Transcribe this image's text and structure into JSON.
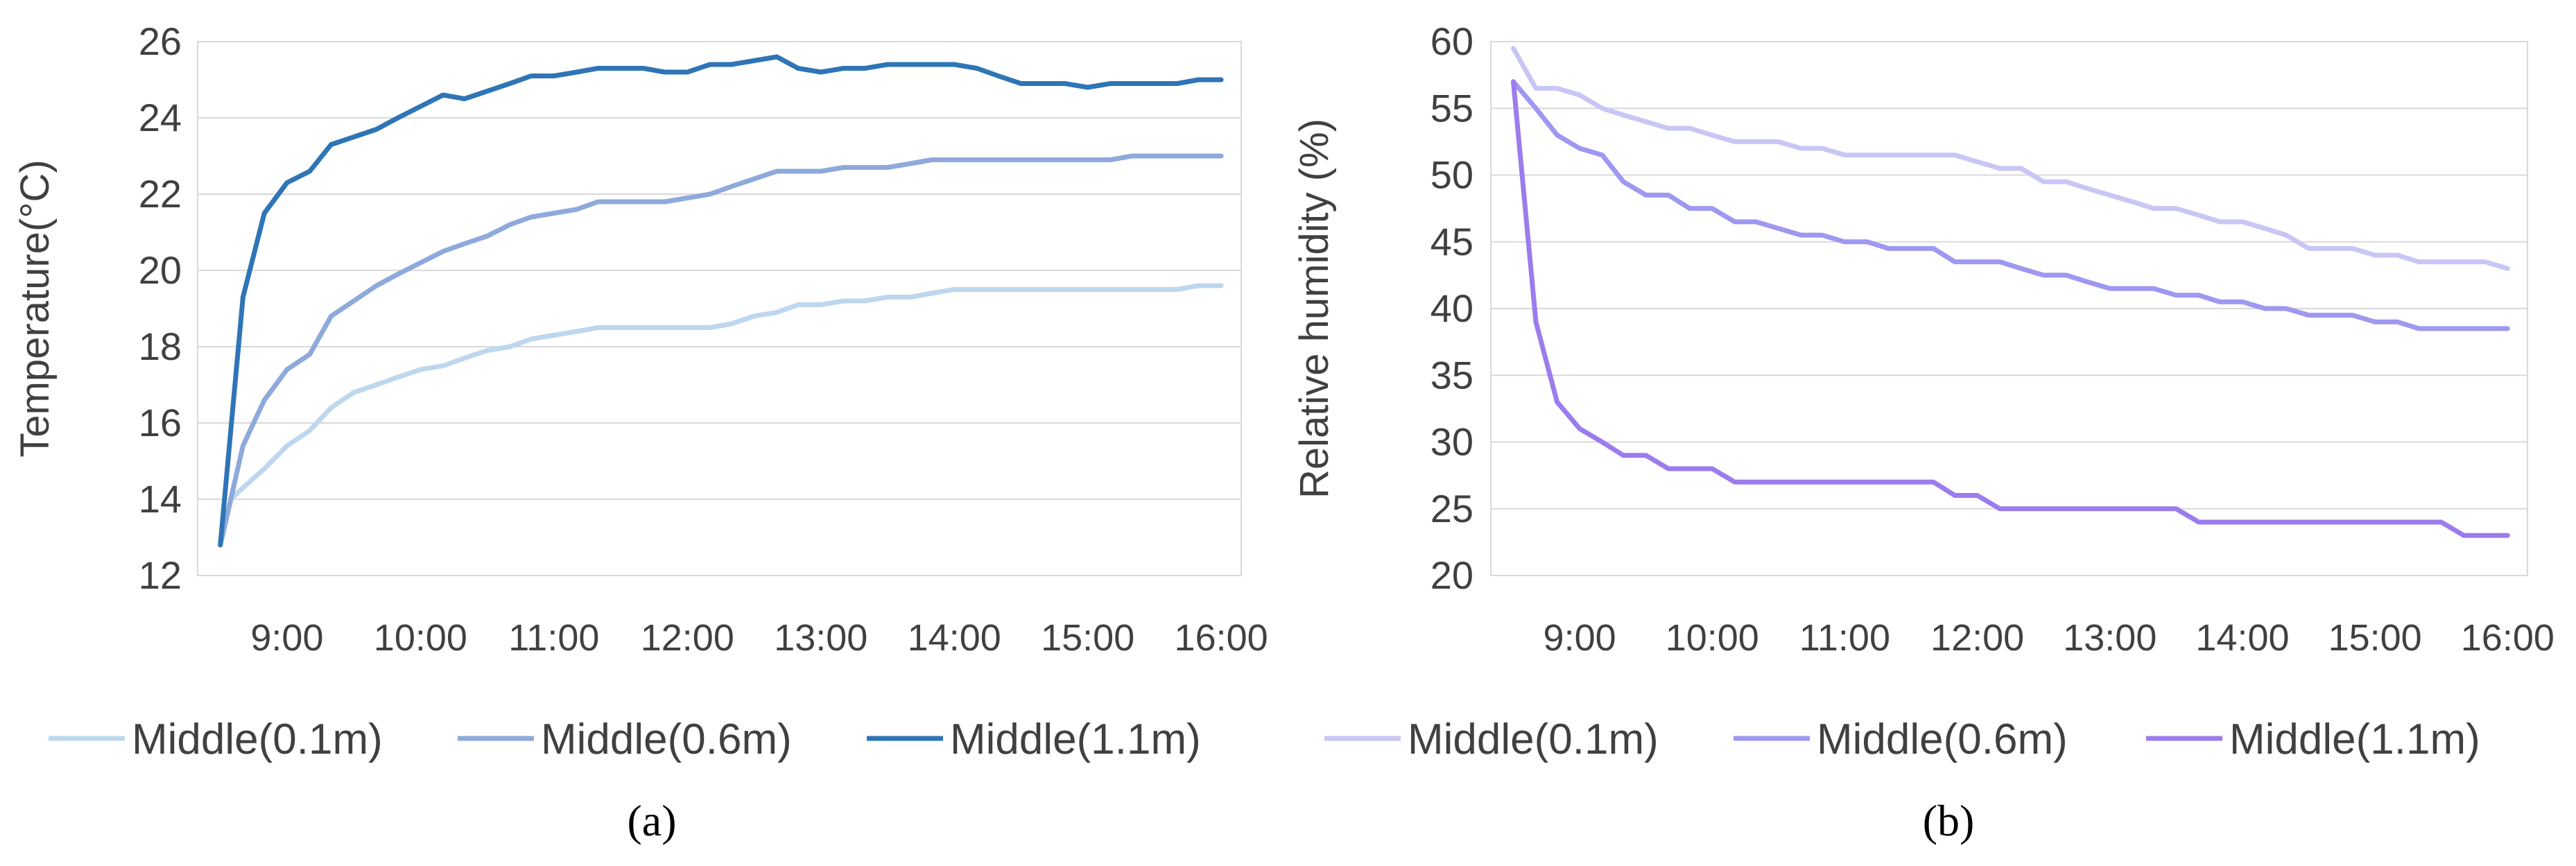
{
  "chart_data": [
    {
      "type": "line",
      "caption": "(a)",
      "ylabel": "Temperature(°C)",
      "ylim": [
        12,
        26
      ],
      "yticks": [
        12,
        14,
        16,
        18,
        20,
        22,
        24,
        26
      ],
      "xlim": [
        8.33,
        16.15
      ],
      "xticks": [
        {
          "v": 9,
          "label": "9:00"
        },
        {
          "v": 10,
          "label": "10:00"
        },
        {
          "v": 11,
          "label": "11:00"
        },
        {
          "v": 12,
          "label": "12:00"
        },
        {
          "v": 13,
          "label": "13:00"
        },
        {
          "v": 14,
          "label": "14:00"
        },
        {
          "v": 15,
          "label": "15:00"
        },
        {
          "v": 16,
          "label": "16:00"
        }
      ],
      "grid": true,
      "legend_position": "bottom",
      "series": [
        {
          "name": "Middle(0.1m)",
          "color": "#bdd7ee",
          "points": [
            [
              8.5,
              12.8
            ],
            [
              8.58,
              14.0
            ],
            [
              8.67,
              14.3
            ],
            [
              8.83,
              14.8
            ],
            [
              9,
              15.4
            ],
            [
              9.17,
              15.8
            ],
            [
              9.33,
              16.4
            ],
            [
              9.5,
              16.8
            ],
            [
              9.67,
              17.0
            ],
            [
              9.83,
              17.2
            ],
            [
              10,
              17.4
            ],
            [
              10.17,
              17.5
            ],
            [
              10.33,
              17.7
            ],
            [
              10.5,
              17.9
            ],
            [
              10.67,
              18.0
            ],
            [
              10.83,
              18.2
            ],
            [
              11,
              18.3
            ],
            [
              11.17,
              18.4
            ],
            [
              11.33,
              18.5
            ],
            [
              11.5,
              18.5
            ],
            [
              11.67,
              18.5
            ],
            [
              11.83,
              18.5
            ],
            [
              12,
              18.5
            ],
            [
              12.17,
              18.5
            ],
            [
              12.33,
              18.6
            ],
            [
              12.5,
              18.8
            ],
            [
              12.67,
              18.9
            ],
            [
              12.83,
              19.1
            ],
            [
              13,
              19.1
            ],
            [
              13.17,
              19.2
            ],
            [
              13.33,
              19.2
            ],
            [
              13.5,
              19.3
            ],
            [
              13.67,
              19.3
            ],
            [
              13.83,
              19.4
            ],
            [
              14,
              19.5
            ],
            [
              14.5,
              19.5
            ],
            [
              15,
              19.5
            ],
            [
              15.5,
              19.5
            ],
            [
              15.67,
              19.5
            ],
            [
              15.83,
              19.6
            ],
            [
              16,
              19.6
            ]
          ]
        },
        {
          "name": "Middle(0.6m)",
          "color": "#8ea9db",
          "points": [
            [
              8.5,
              12.8
            ],
            [
              8.67,
              15.4
            ],
            [
              8.83,
              16.6
            ],
            [
              9,
              17.4
            ],
            [
              9.17,
              17.8
            ],
            [
              9.33,
              18.8
            ],
            [
              9.5,
              19.2
            ],
            [
              9.67,
              19.6
            ],
            [
              9.83,
              19.9
            ],
            [
              10,
              20.2
            ],
            [
              10.17,
              20.5
            ],
            [
              10.33,
              20.7
            ],
            [
              10.5,
              20.9
            ],
            [
              10.67,
              21.2
            ],
            [
              10.83,
              21.4
            ],
            [
              11,
              21.5
            ],
            [
              11.17,
              21.6
            ],
            [
              11.33,
              21.8
            ],
            [
              11.5,
              21.8
            ],
            [
              11.67,
              21.8
            ],
            [
              11.83,
              21.8
            ],
            [
              12,
              21.9
            ],
            [
              12.17,
              22.0
            ],
            [
              12.33,
              22.2
            ],
            [
              12.5,
              22.4
            ],
            [
              12.67,
              22.6
            ],
            [
              12.83,
              22.6
            ],
            [
              13,
              22.6
            ],
            [
              13.17,
              22.7
            ],
            [
              13.33,
              22.7
            ],
            [
              13.5,
              22.7
            ],
            [
              13.67,
              22.8
            ],
            [
              13.83,
              22.9
            ],
            [
              14,
              22.9
            ],
            [
              14.5,
              22.9
            ],
            [
              15,
              22.9
            ],
            [
              15.17,
              22.9
            ],
            [
              15.33,
              23.0
            ],
            [
              16,
              23.0
            ]
          ]
        },
        {
          "name": "Middle(1.1m)",
          "color": "#2e75b6",
          "points": [
            [
              8.5,
              12.8
            ],
            [
              8.67,
              19.3
            ],
            [
              8.83,
              21.5
            ],
            [
              9,
              22.3
            ],
            [
              9.17,
              22.6
            ],
            [
              9.33,
              23.3
            ],
            [
              9.5,
              23.5
            ],
            [
              9.67,
              23.7
            ],
            [
              9.83,
              24.0
            ],
            [
              10,
              24.3
            ],
            [
              10.17,
              24.6
            ],
            [
              10.33,
              24.5
            ],
            [
              10.5,
              24.7
            ],
            [
              10.67,
              24.9
            ],
            [
              10.83,
              25.1
            ],
            [
              11,
              25.1
            ],
            [
              11.17,
              25.2
            ],
            [
              11.33,
              25.3
            ],
            [
              11.5,
              25.3
            ],
            [
              11.67,
              25.3
            ],
            [
              11.83,
              25.2
            ],
            [
              12,
              25.2
            ],
            [
              12.17,
              25.4
            ],
            [
              12.33,
              25.4
            ],
            [
              12.5,
              25.5
            ],
            [
              12.67,
              25.6
            ],
            [
              12.83,
              25.3
            ],
            [
              13,
              25.2
            ],
            [
              13.17,
              25.3
            ],
            [
              13.33,
              25.3
            ],
            [
              13.5,
              25.4
            ],
            [
              13.67,
              25.4
            ],
            [
              13.83,
              25.4
            ],
            [
              14,
              25.4
            ],
            [
              14.17,
              25.3
            ],
            [
              14.33,
              25.1
            ],
            [
              14.5,
              24.9
            ],
            [
              14.67,
              24.9
            ],
            [
              14.83,
              24.9
            ],
            [
              15,
              24.8
            ],
            [
              15.17,
              24.9
            ],
            [
              15.33,
              24.9
            ],
            [
              15.5,
              24.9
            ],
            [
              15.67,
              24.9
            ],
            [
              15.83,
              25.0
            ],
            [
              16,
              25.0
            ]
          ]
        }
      ]
    },
    {
      "type": "line",
      "caption": "(b)",
      "ylabel": "Relative humidity (%)",
      "ylim": [
        20,
        60
      ],
      "yticks": [
        20,
        25,
        30,
        35,
        40,
        45,
        50,
        55,
        60
      ],
      "xlim": [
        8.33,
        16.15
      ],
      "xticks": [
        {
          "v": 9,
          "label": "9:00"
        },
        {
          "v": 10,
          "label": "10:00"
        },
        {
          "v": 11,
          "label": "11:00"
        },
        {
          "v": 12,
          "label": "12:00"
        },
        {
          "v": 13,
          "label": "13:00"
        },
        {
          "v": 14,
          "label": "14:00"
        },
        {
          "v": 15,
          "label": "15:00"
        },
        {
          "v": 16,
          "label": "16:00"
        }
      ],
      "grid": true,
      "legend_position": "bottom",
      "series": [
        {
          "name": "Middle(0.1m)",
          "color": "#c9c6f5",
          "points": [
            [
              8.5,
              59.5
            ],
            [
              8.67,
              56.5
            ],
            [
              8.83,
              56.5
            ],
            [
              9,
              56.0
            ],
            [
              9.17,
              55.0
            ],
            [
              9.33,
              54.5
            ],
            [
              9.5,
              54.0
            ],
            [
              9.67,
              53.5
            ],
            [
              9.83,
              53.5
            ],
            [
              10,
              53.0
            ],
            [
              10.17,
              52.5
            ],
            [
              10.33,
              52.5
            ],
            [
              10.5,
              52.5
            ],
            [
              10.67,
              52.0
            ],
            [
              10.83,
              52.0
            ],
            [
              11,
              51.5
            ],
            [
              11.5,
              51.5
            ],
            [
              11.83,
              51.5
            ],
            [
              12,
              51.0
            ],
            [
              12.17,
              50.5
            ],
            [
              12.33,
              50.5
            ],
            [
              12.5,
              49.5
            ],
            [
              12.67,
              49.5
            ],
            [
              12.83,
              49.0
            ],
            [
              13,
              48.5
            ],
            [
              13.17,
              48.0
            ],
            [
              13.33,
              47.5
            ],
            [
              13.5,
              47.5
            ],
            [
              13.67,
              47.0
            ],
            [
              13.83,
              46.5
            ],
            [
              14,
              46.5
            ],
            [
              14.17,
              46.0
            ],
            [
              14.33,
              45.5
            ],
            [
              14.5,
              44.5
            ],
            [
              14.67,
              44.5
            ],
            [
              14.83,
              44.5
            ],
            [
              15,
              44.0
            ],
            [
              15.17,
              44.0
            ],
            [
              15.33,
              43.5
            ],
            [
              15.5,
              43.5
            ],
            [
              15.67,
              43.5
            ],
            [
              15.83,
              43.5
            ],
            [
              16,
              43.0
            ]
          ]
        },
        {
          "name": "Middle(0.6m)",
          "color": "#9e98f0",
          "points": [
            [
              8.5,
              57.0
            ],
            [
              8.67,
              55.0
            ],
            [
              8.83,
              53.0
            ],
            [
              9,
              52.0
            ],
            [
              9.17,
              51.5
            ],
            [
              9.33,
              49.5
            ],
            [
              9.5,
              48.5
            ],
            [
              9.67,
              48.5
            ],
            [
              9.83,
              47.5
            ],
            [
              10,
              47.5
            ],
            [
              10.17,
              46.5
            ],
            [
              10.33,
              46.5
            ],
            [
              10.5,
              46.0
            ],
            [
              10.67,
              45.5
            ],
            [
              10.83,
              45.5
            ],
            [
              11,
              45.0
            ],
            [
              11.17,
              45.0
            ],
            [
              11.33,
              44.5
            ],
            [
              11.5,
              44.5
            ],
            [
              11.67,
              44.5
            ],
            [
              11.83,
              43.5
            ],
            [
              12,
              43.5
            ],
            [
              12.17,
              43.5
            ],
            [
              12.33,
              43.0
            ],
            [
              12.5,
              42.5
            ],
            [
              12.67,
              42.5
            ],
            [
              12.83,
              42.0
            ],
            [
              13,
              41.5
            ],
            [
              13.17,
              41.5
            ],
            [
              13.33,
              41.5
            ],
            [
              13.5,
              41.0
            ],
            [
              13.67,
              41.0
            ],
            [
              13.83,
              40.5
            ],
            [
              14,
              40.5
            ],
            [
              14.17,
              40.0
            ],
            [
              14.33,
              40.0
            ],
            [
              14.5,
              39.5
            ],
            [
              14.67,
              39.5
            ],
            [
              14.83,
              39.5
            ],
            [
              15,
              39.0
            ],
            [
              15.17,
              39.0
            ],
            [
              15.33,
              38.5
            ],
            [
              15.5,
              38.5
            ],
            [
              16,
              38.5
            ]
          ]
        },
        {
          "name": "Middle(1.1m)",
          "color": "#9b7cec",
          "points": [
            [
              8.5,
              57.0
            ],
            [
              8.67,
              39.0
            ],
            [
              8.83,
              33.0
            ],
            [
              9,
              31.0
            ],
            [
              9.17,
              30.0
            ],
            [
              9.33,
              29.0
            ],
            [
              9.5,
              29.0
            ],
            [
              9.67,
              28.0
            ],
            [
              9.83,
              28.0
            ],
            [
              10,
              28.0
            ],
            [
              10.17,
              27.0
            ],
            [
              10.5,
              27.0
            ],
            [
              11,
              27.0
            ],
            [
              11.5,
              27.0
            ],
            [
              11.67,
              27.0
            ],
            [
              11.83,
              26.0
            ],
            [
              12,
              26.0
            ],
            [
              12.17,
              25.0
            ],
            [
              12.5,
              25.0
            ],
            [
              13,
              25.0
            ],
            [
              13.5,
              25.0
            ],
            [
              13.67,
              24.0
            ],
            [
              14,
              24.0
            ],
            [
              14.5,
              24.0
            ],
            [
              15,
              24.0
            ],
            [
              15.5,
              24.0
            ],
            [
              15.67,
              23.0
            ],
            [
              16,
              23.0
            ]
          ]
        }
      ]
    }
  ]
}
